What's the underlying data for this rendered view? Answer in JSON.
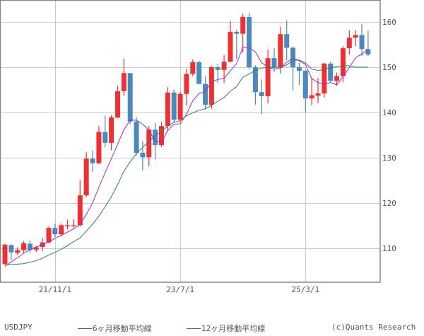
{
  "chart_data": {
    "type": "candlestick",
    "title": "USDJPY",
    "xlabel": "",
    "ylabel": "",
    "ylim": [
      102.5,
      164.5
    ],
    "yticks": [
      110,
      120,
      130,
      140,
      150,
      160
    ],
    "xticks": [
      {
        "label": "21/11/1",
        "index": 8
      },
      {
        "label": "23/7/1",
        "index": 28
      },
      {
        "label": "25/3/1",
        "index": 48
      }
    ],
    "grid": true,
    "legend_position": "bottom",
    "colors": {
      "up": "#f03030",
      "down": "#4a88be",
      "ma6": "#9a2fc0",
      "ma12": "#2f7a70",
      "grid": "#cccccc",
      "axis": "#888888"
    },
    "series": [
      {
        "name": "USDJPY",
        "start": "2021-03",
        "interval": "month",
        "ohlc": [
          [
            106.5,
            110.8,
            106.4,
            111.0
          ],
          [
            110.7,
            109.1,
            107.5,
            110.9
          ],
          [
            109.0,
            109.6,
            108.5,
            110.2
          ],
          [
            109.6,
            111.1,
            109.0,
            111.6
          ],
          [
            111.0,
            109.6,
            109.0,
            111.7
          ],
          [
            109.7,
            110.2,
            109.2,
            110.5
          ],
          [
            110.3,
            111.3,
            109.4,
            112.3
          ],
          [
            111.3,
            114.5,
            111.1,
            114.8
          ],
          [
            114.5,
            113.1,
            112.5,
            115.5
          ],
          [
            113.1,
            115.1,
            112.6,
            115.5
          ],
          [
            115.1,
            115.1,
            114.2,
            116.3
          ],
          [
            115.1,
            115.1,
            114.5,
            116.4
          ],
          [
            115.1,
            121.7,
            114.8,
            125.1
          ],
          [
            121.7,
            129.8,
            121.3,
            131.3
          ],
          [
            129.8,
            128.8,
            126.9,
            131.6
          ],
          [
            128.8,
            135.7,
            128.6,
            137.0
          ],
          [
            135.7,
            133.3,
            132.3,
            139.3
          ],
          [
            133.3,
            138.9,
            131.6,
            139.4
          ],
          [
            138.9,
            144.7,
            138.7,
            145.9
          ],
          [
            144.7,
            148.7,
            143.7,
            151.9
          ],
          [
            148.7,
            138.0,
            137.4,
            148.7
          ],
          [
            138.0,
            131.1,
            130.5,
            139.0
          ],
          [
            131.1,
            130.1,
            127.2,
            133.7
          ],
          [
            130.1,
            136.2,
            128.1,
            137.0
          ],
          [
            136.2,
            132.8,
            129.6,
            137.7
          ],
          [
            132.8,
            137.0,
            132.4,
            137.9
          ],
          [
            137.0,
            144.4,
            135.9,
            145.6
          ],
          [
            144.4,
            138.4,
            137.8,
            145.1
          ],
          [
            138.4,
            144.1,
            138.0,
            144.6
          ],
          [
            144.1,
            148.5,
            141.5,
            149.6
          ],
          [
            148.5,
            151.1,
            148.0,
            151.7
          ],
          [
            151.1,
            146.3,
            146.5,
            151.4
          ],
          [
            146.3,
            141.7,
            140.7,
            148.0
          ],
          [
            141.7,
            150.0,
            140.8,
            150.2
          ],
          [
            150.0,
            149.4,
            146.5,
            150.7
          ],
          [
            149.4,
            151.2,
            146.5,
            152.7
          ],
          [
            151.2,
            157.8,
            151.2,
            160.2
          ],
          [
            157.8,
            157.4,
            151.8,
            158.3
          ],
          [
            157.4,
            161.1,
            153.2,
            161.8
          ],
          [
            161.1,
            150.0,
            149.5,
            162.0
          ],
          [
            150.0,
            144.5,
            141.7,
            150.4
          ],
          [
            144.5,
            143.6,
            139.6,
            147.3
          ],
          [
            143.6,
            152.0,
            142.0,
            153.9
          ],
          [
            152.0,
            149.9,
            149.0,
            154.2
          ],
          [
            149.9,
            157.3,
            148.6,
            158.9
          ],
          [
            157.3,
            154.3,
            151.5,
            160.3
          ],
          [
            154.3,
            150.0,
            144.8,
            154.6
          ],
          [
            150.0,
            149.2,
            146.1,
            151.0
          ],
          [
            149.2,
            143.1,
            140.0,
            149.4
          ],
          [
            143.1,
            143.8,
            141.6,
            147.6
          ],
          [
            143.7,
            144.2,
            142.1,
            147.6
          ],
          [
            144.2,
            150.8,
            143.3,
            151.0
          ],
          [
            150.8,
            147.0,
            146.6,
            151.2
          ],
          [
            147.0,
            148.0,
            145.9,
            148.8
          ],
          [
            148.0,
            154.2,
            146.7,
            154.6
          ],
          [
            154.2,
            156.5,
            152.8,
            158.2
          ],
          [
            156.5,
            157.1,
            154.6,
            158.2
          ],
          [
            157.1,
            154.0,
            152.5,
            159.6
          ],
          [
            154.0,
            152.8,
            152.5,
            158.1
          ]
        ]
      },
      {
        "name": "6ヶ月移動平均線",
        "start": "2021-03",
        "values": [
          106.0,
          107.0,
          107.9,
          108.9,
          109.7,
          110.3,
          110.8,
          111.4,
          112.2,
          112.9,
          113.6,
          114.3,
          115.3,
          117.5,
          120.0,
          123.5,
          126.7,
          129.8,
          133.0,
          136.2,
          138.3,
          138.3,
          137.4,
          136.1,
          133.7,
          133.4,
          136.0,
          137.4,
          137.5,
          139.6,
          142.6,
          144.2,
          144.6,
          146.8,
          147.3,
          147.5,
          149.2,
          150.8,
          154.4,
          154.3,
          153.4,
          151.0,
          150.0,
          149.6,
          149.8,
          151.1,
          152.0,
          151.4,
          150.6,
          147.5,
          146.6,
          146.3,
          146.6,
          146.1,
          147.9,
          149.9,
          152.1,
          152.9,
          153.9
        ]
      },
      {
        "name": "12ヶ月移動平均線",
        "start": "2021-03",
        "values": [
          106.3,
          106.4,
          106.5,
          106.6,
          106.9,
          107.3,
          107.8,
          108.5,
          109.1,
          109.8,
          110.6,
          111.5,
          112.3,
          113.8,
          115.3,
          117.1,
          119.2,
          121.4,
          124.1,
          127.0,
          129.1,
          130.9,
          132.3,
          133.6,
          134.9,
          135.8,
          137.0,
          137.8,
          138.2,
          139.3,
          139.9,
          140.5,
          140.8,
          141.6,
          142.5,
          143.3,
          144.7,
          145.7,
          147.8,
          148.5,
          149.3,
          149.8,
          150.0,
          150.0,
          150.0,
          150.5,
          151.5,
          151.6,
          150.9,
          149.6,
          149.3,
          149.5,
          149.9,
          150.1,
          150.4,
          150.3,
          150.0,
          150.0,
          150.0
        ]
      }
    ]
  },
  "legend": {
    "title": "USDJPY",
    "ma6_label": "6ヶ月移動平均線",
    "ma12_label": "12ヶ月移動平均線",
    "copyright": "(c)Quants Research"
  },
  "axis": {
    "y_labels": [
      "160",
      "150",
      "140",
      "130",
      "120",
      "110"
    ],
    "x_labels": [
      "21/11/1",
      "23/7/1",
      "25/3/1"
    ]
  }
}
